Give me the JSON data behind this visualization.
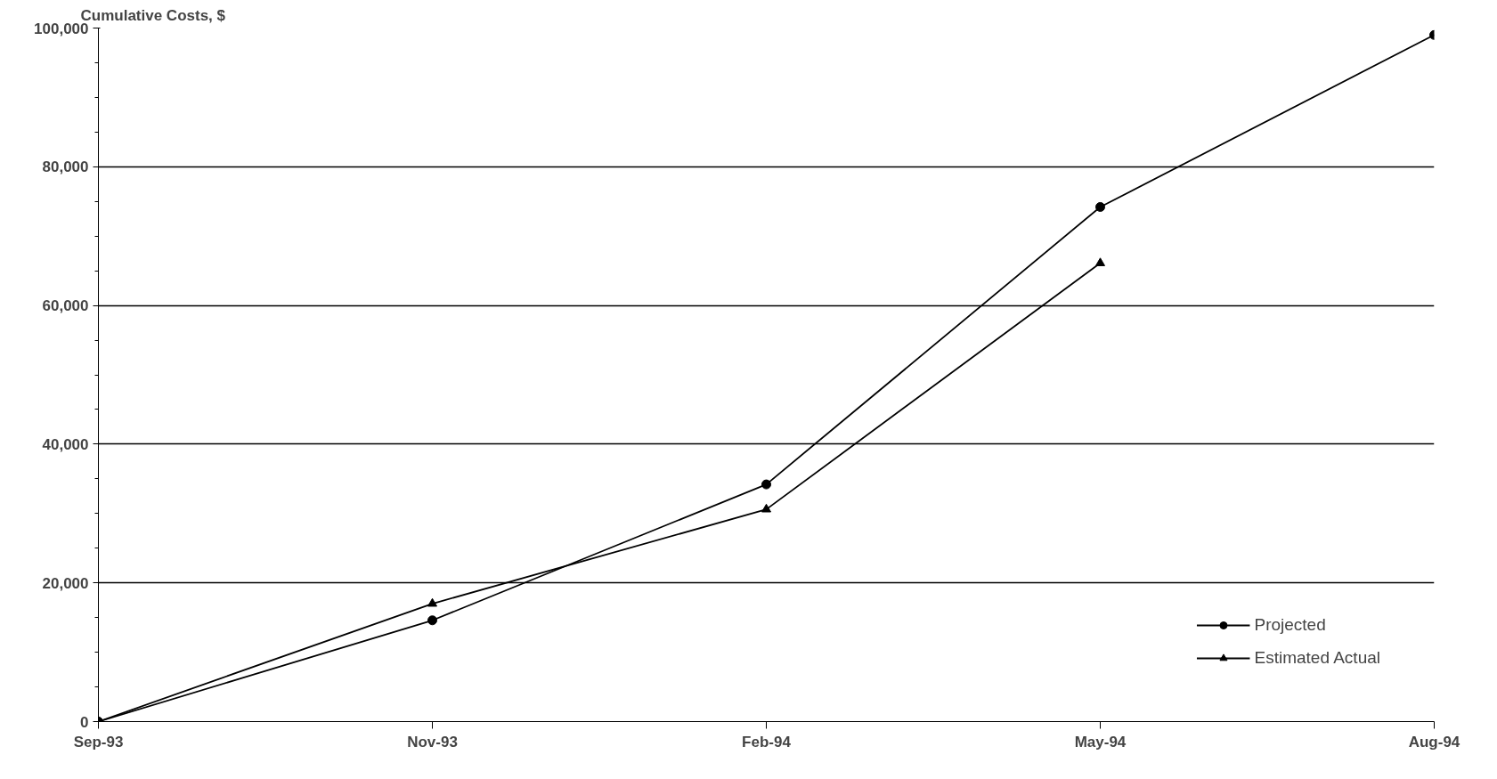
{
  "chart_data": {
    "type": "line",
    "ylabel": "Cumulative Costs, $",
    "categories": [
      "Sep-93",
      "Nov-93",
      "Feb-94",
      "May-94",
      "Aug-94"
    ],
    "series": [
      {
        "name": "Projected",
        "color": "#000000",
        "marker": "circle",
        "values": [
          0,
          14600,
          34200,
          74200,
          99000
        ]
      },
      {
        "name": "Estimated Actual",
        "color": "#000000",
        "marker": "triangle",
        "values": [
          0,
          17000,
          30600,
          66100,
          null
        ]
      }
    ],
    "ylim": [
      0,
      100000
    ],
    "yticks": [
      {
        "value": 0,
        "label": "0"
      },
      {
        "value": 20000,
        "label": "20,000"
      },
      {
        "value": 40000,
        "label": "40,000"
      },
      {
        "value": 60000,
        "label": "60,000"
      },
      {
        "value": 80000,
        "label": "80,000"
      },
      {
        "value": 100000,
        "label": "100,000"
      }
    ],
    "grid": "y",
    "legend": "bottom right",
    "line_style": "solid"
  }
}
